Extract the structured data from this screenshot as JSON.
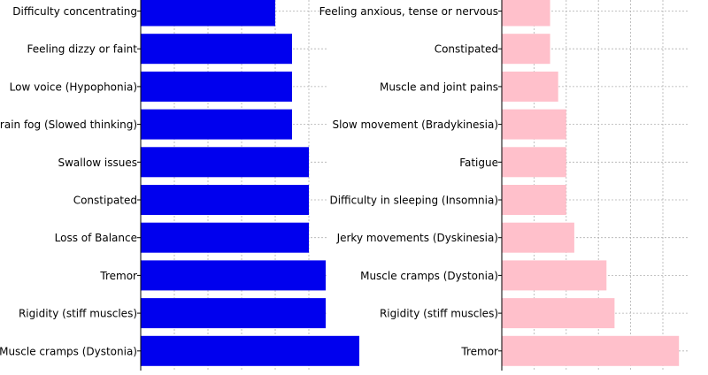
{
  "chart_data": [
    {
      "type": "bar",
      "orientation": "horizontal",
      "color": "#0000ee",
      "categories": [
        "Difficulty concentrating",
        "Feeling dizzy or faint",
        "Low voice (Hypophonia)",
        "Brain fog (Slowed thinking)",
        "Swallow issues",
        "Constipated",
        "Loss of Balance",
        "Tremor",
        "Rigidity (stiff muscles)",
        "Muscle cramps (Dystonia)"
      ],
      "values": [
        8,
        9,
        9,
        9,
        10,
        10,
        10,
        11,
        11,
        13
      ],
      "xlim": [
        0,
        15
      ],
      "grid": true
    },
    {
      "type": "bar",
      "orientation": "horizontal",
      "color": "#ffc0cb",
      "categories": [
        "Feeling anxious, tense or nervous",
        "Constipated",
        "Muscle and joint pains",
        "Slow movement (Bradykinesia)",
        "Fatigue",
        "Difficulty in sleeping (Insomnia)",
        "Jerky movements (Dyskinesia)",
        "Muscle cramps (Dystonia)",
        "Rigidity (stiff muscles)",
        "Tremor"
      ],
      "values": [
        6,
        6,
        7,
        8,
        8,
        8,
        9,
        13,
        14,
        22
      ],
      "xlim": [
        0,
        23
      ],
      "grid": true
    }
  ]
}
